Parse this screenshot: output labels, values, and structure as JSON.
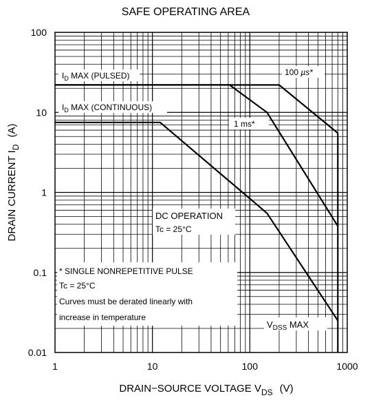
{
  "chart_data": {
    "type": "line",
    "title": "SAFE OPERATING AREA",
    "xlabel": {
      "main": "DRAIN−SOURCE VOLTAGE  V",
      "sub": "DS",
      "unit": "(V)"
    },
    "ylabel": {
      "main": "DRAIN CURRENT  I",
      "sub": "D",
      "unit": "(A)"
    },
    "x_scale": "log",
    "y_scale": "log",
    "xlim": [
      1,
      1000
    ],
    "ylim": [
      0.01,
      100
    ],
    "x_ticks": [
      {
        "value": 1,
        "label": "1"
      },
      {
        "value": 10,
        "label": "10"
      },
      {
        "value": 100,
        "label": "100"
      },
      {
        "value": 1000,
        "label": "1000"
      }
    ],
    "y_ticks": [
      {
        "value": 100,
        "label": "100"
      },
      {
        "value": 10,
        "label": "10"
      },
      {
        "value": 1,
        "label": "1"
      },
      {
        "value": 0.1,
        "label": "0.1"
      },
      {
        "value": 0.01,
        "label": "0.01"
      }
    ],
    "grid": true,
    "series": [
      {
        "name": "100 µs*",
        "points": [
          [
            1,
            22
          ],
          [
            200,
            22
          ],
          [
            800,
            5.5
          ]
        ]
      },
      {
        "name": "1 ms*",
        "points": [
          [
            1,
            22
          ],
          [
            62,
            22
          ],
          [
            150,
            10
          ],
          [
            800,
            0.38
          ]
        ]
      },
      {
        "name": "DC OPERATION Tc = 25°C",
        "points": [
          [
            1,
            7.5
          ],
          [
            12,
            7.5
          ],
          [
            150,
            0.55
          ],
          [
            800,
            0.025
          ]
        ]
      },
      {
        "name": "VDSS MAX",
        "points": [
          [
            800,
            5.5
          ],
          [
            800,
            0.01
          ]
        ]
      }
    ],
    "annotations": {
      "id_pulsed": {
        "prefix": "I",
        "sub": "D",
        "rest": " MAX (PULSED)"
      },
      "id_continuous": {
        "prefix": "I",
        "sub": "D",
        "rest": " MAX (CONTINUOUS)"
      },
      "us100": {
        "num": "100 ",
        "unit": "µs*"
      },
      "ms1": "1 ms*",
      "dc_line1": "DC OPERATION",
      "dc_line2": "Tc  =  25°C",
      "note_line1": "* SINGLE NONREPETITIVE PULSE",
      "note_line2": "Tc = 25°C",
      "note_line3": "Curves must be derated linearly with",
      "note_line4": "increase in temperature",
      "vdss": {
        "prefix": "V",
        "sub": "DSS",
        "rest": " MAX"
      }
    }
  }
}
